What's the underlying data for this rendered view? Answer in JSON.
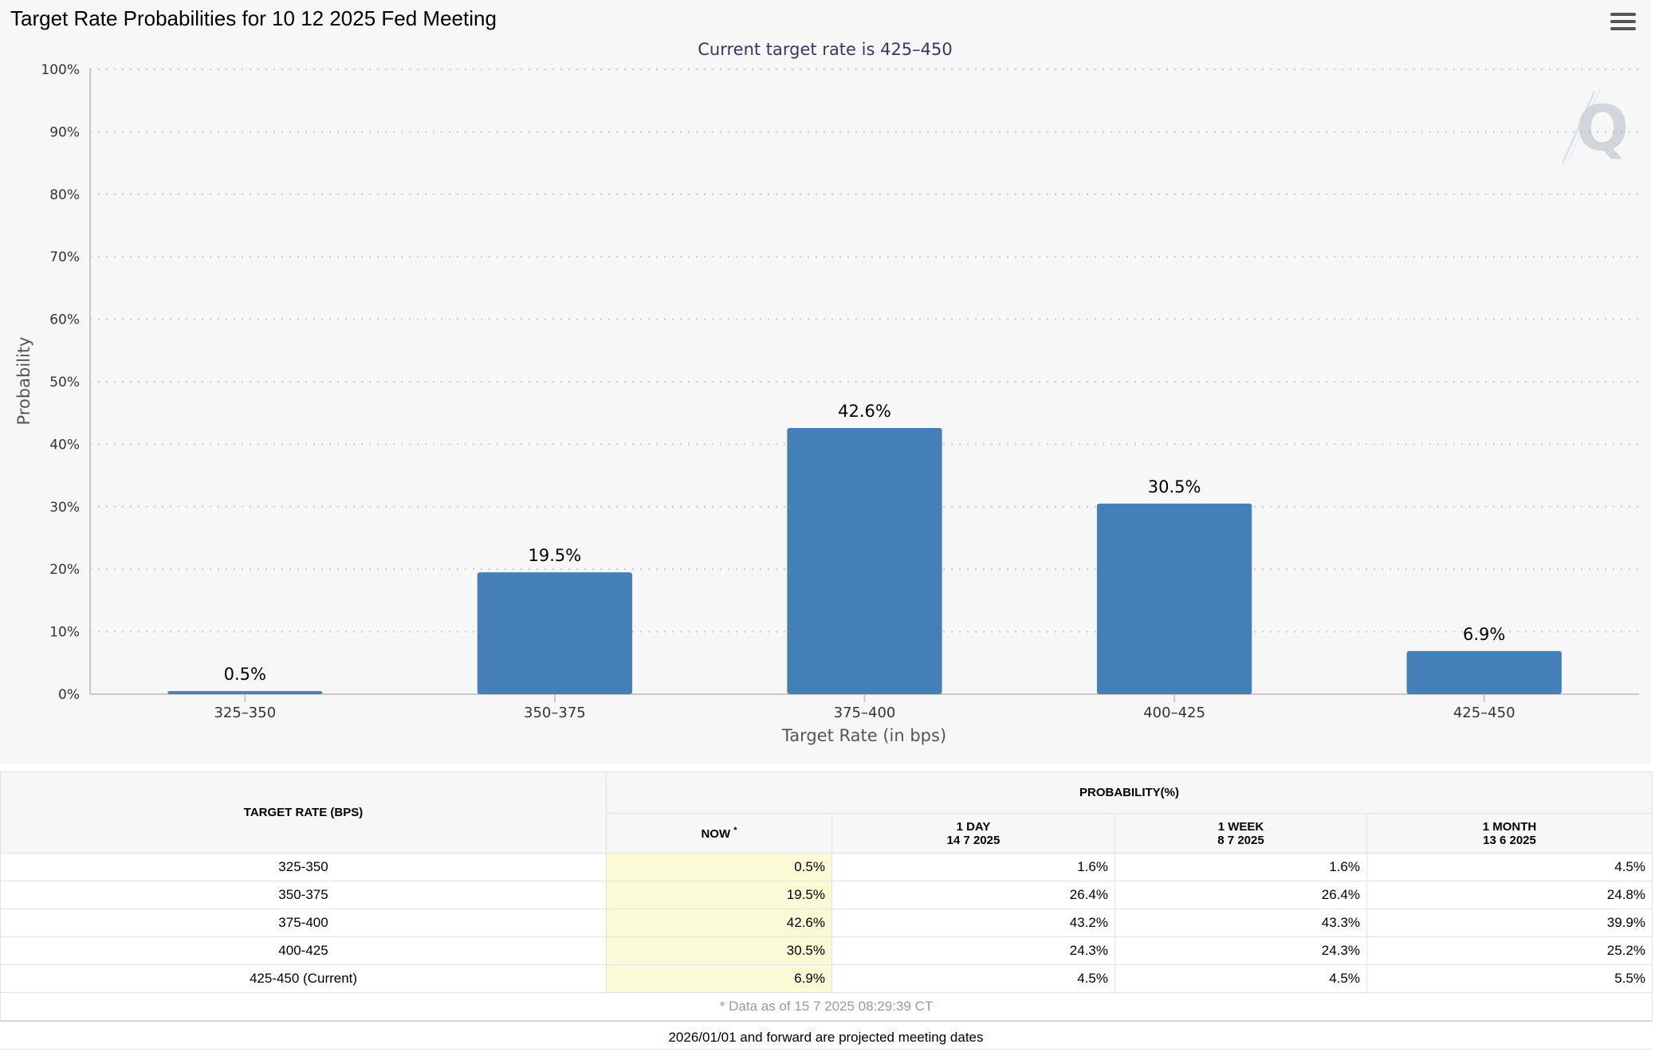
{
  "header": {
    "title": "Target Rate Probabilities for 10 12 2025 Fed Meeting",
    "menu_icon": "hamburger-menu-icon"
  },
  "chart_data": {
    "type": "bar",
    "title": "Target Rate Probabilities for 10 12 2025 Fed Meeting",
    "subtitle": "Current target rate is 425–450",
    "xlabel": "Target Rate (in bps)",
    "ylabel": "Probability",
    "categories": [
      "325–350",
      "350–375",
      "375–400",
      "400–425",
      "425–450"
    ],
    "values": [
      0.5,
      19.5,
      42.6,
      30.5,
      6.9
    ],
    "data_labels": [
      "0.5%",
      "19.5%",
      "42.6%",
      "30.5%",
      "6.9%"
    ],
    "ylim": [
      0,
      100
    ],
    "yticks": [
      "0%",
      "10%",
      "20%",
      "30%",
      "40%",
      "50%",
      "60%",
      "70%",
      "80%",
      "90%",
      "100%"
    ],
    "grid": true,
    "bar_color": "#4480b7",
    "watermark_icon": "q-logo-icon"
  },
  "table": {
    "rate_header": "TARGET RATE (BPS)",
    "prob_header": "PROBABILITY(%)",
    "columns": [
      {
        "label": "NOW",
        "marker": "*",
        "date": ""
      },
      {
        "label": "1 DAY",
        "date": "14 7 2025"
      },
      {
        "label": "1 WEEK",
        "date": "8 7 2025"
      },
      {
        "label": "1 MONTH",
        "date": "13 6 2025"
      }
    ],
    "rows": [
      {
        "rate": "325-350",
        "now": "0.5%",
        "day": "1.6%",
        "week": "1.6%",
        "month": "4.5%"
      },
      {
        "rate": "350-375",
        "now": "19.5%",
        "day": "26.4%",
        "week": "26.4%",
        "month": "24.8%"
      },
      {
        "rate": "375-400",
        "now": "42.6%",
        "day": "43.2%",
        "week": "43.3%",
        "month": "39.9%"
      },
      {
        "rate": "400-425",
        "now": "30.5%",
        "day": "24.3%",
        "week": "24.3%",
        "month": "25.2%"
      },
      {
        "rate": "425-450 (Current)",
        "now": "6.9%",
        "day": "4.5%",
        "week": "4.5%",
        "month": "5.5%"
      }
    ],
    "data_note": "* Data as of 15 7 2025 08:29:39 CT"
  },
  "footer": {
    "note": "2026/01/01 and forward are projected meeting dates"
  }
}
